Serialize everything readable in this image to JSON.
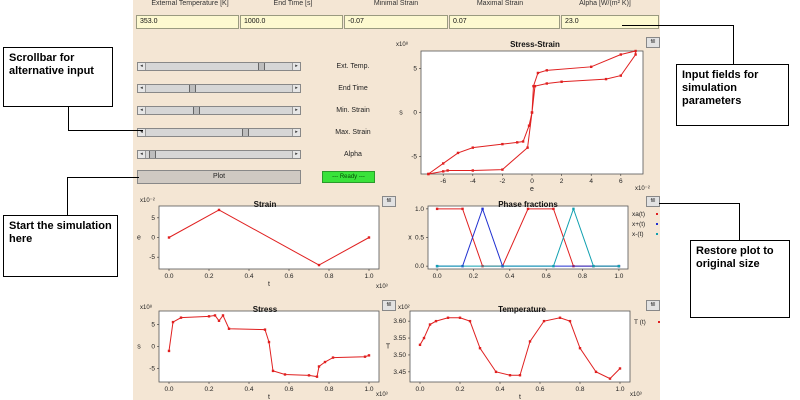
{
  "headers": [
    "External Temperature [K]",
    "End Time [s]",
    "Minimal Strain",
    "Maximal Strain",
    "Alpha [W/(m² K)]"
  ],
  "fields": [
    "353.0",
    "1000.0",
    "-0.07",
    "0.07",
    "23.0"
  ],
  "sliders": [
    {
      "label": "Ext. Temp.",
      "level": 0.78
    },
    {
      "label": "End Time",
      "level": 0.3
    },
    {
      "label": "Min. Strain",
      "level": 0.33
    },
    {
      "label": "Max. Strain",
      "level": 0.67
    },
    {
      "label": "Alpha",
      "level": 0.02
    }
  ],
  "plot_button": "Plot",
  "status": "--- Ready ---",
  "fill_label": "fill",
  "callouts": {
    "scrollbar": "Scrollbar for alternative input",
    "start": "Start the simulation here",
    "inputs": "Input fields for simulation parameters",
    "restore": "Restore plot to original size"
  },
  "chart_data": [
    {
      "type": "line",
      "title": "Stress-Strain",
      "xlabel": "e",
      "ylabel": "s",
      "x_mult": "x10⁻²",
      "y_mult": "x10⁸",
      "xlim": [
        -7.5,
        7.5
      ],
      "ylim": [
        -7,
        7
      ],
      "xticks": [
        -6,
        -4,
        -2,
        0,
        2,
        4,
        6
      ],
      "yticks": [
        -5,
        0,
        5
      ],
      "series": [
        {
          "color": "#e02020",
          "x": [
            -7,
            -6,
            -5,
            -4,
            -2,
            -1,
            -0.6,
            -0.2,
            0,
            0.2,
            1,
            2,
            5,
            6,
            7,
            7,
            6,
            4,
            1,
            0.4,
            0.1,
            0,
            -0.3,
            -2,
            -4,
            -5.7,
            -6,
            -7
          ],
          "y": [
            -7,
            -5.8,
            -4.6,
            -4,
            -3.6,
            -3.4,
            -3.3,
            -1.5,
            0,
            3,
            3.3,
            3.5,
            3.8,
            4.2,
            6.6,
            7,
            6.6,
            5.2,
            4.8,
            4.5,
            3,
            0,
            -4,
            -6.5,
            -6.6,
            -6.6,
            -6.7,
            -7
          ]
        }
      ]
    },
    {
      "type": "line",
      "title": "Strain",
      "xlabel": "t",
      "ylabel": "e",
      "x_mult": "x10³",
      "y_mult": "x10⁻²",
      "xlim": [
        -0.05,
        1.05
      ],
      "ylim": [
        -8,
        8
      ],
      "xticks": [
        0.0,
        0.2,
        0.4,
        0.6,
        0.8,
        1.0
      ],
      "yticks": [
        -5,
        0,
        5
      ],
      "series": [
        {
          "color": "#e02020",
          "x": [
            0,
            0.25,
            0.75,
            1.0
          ],
          "y": [
            0,
            7,
            -7,
            0
          ]
        }
      ]
    },
    {
      "type": "line",
      "title": "Phase fractions",
      "ylabel": "x",
      "xlim": [
        -0.05,
        1.05
      ],
      "ylim": [
        -0.05,
        1.05
      ],
      "xticks": [
        0.0,
        0.2,
        0.4,
        0.6,
        0.8,
        1.0
      ],
      "yticks": [
        0.0,
        0.5,
        1.0
      ],
      "series": [
        {
          "name": "xa(t)",
          "color": "#e02020",
          "x": [
            0,
            0.14,
            0.25,
            0.36,
            0.5,
            0.64,
            0.75,
            0.86,
            1.0
          ],
          "y": [
            1,
            1,
            0,
            0,
            1,
            1,
            0,
            0,
            0
          ]
        },
        {
          "name": "x+(t)",
          "color": "#2030d0",
          "x": [
            0,
            0.14,
            0.25,
            0.36,
            1.0
          ],
          "y": [
            0,
            0,
            1,
            0,
            0
          ]
        },
        {
          "name": "x-(t)",
          "color": "#10a0b0",
          "x": [
            0,
            0.64,
            0.75,
            0.86,
            1.0
          ],
          "y": [
            0,
            0,
            1,
            0,
            0
          ]
        }
      ]
    },
    {
      "type": "line",
      "title": "Stress",
      "xlabel": "t",
      "ylabel": "s",
      "x_mult": "x10³",
      "y_mult": "x10⁸",
      "xlim": [
        -0.05,
        1.05
      ],
      "ylim": [
        -8,
        8
      ],
      "xticks": [
        0.0,
        0.2,
        0.4,
        0.6,
        0.8,
        1.0
      ],
      "yticks": [
        -5,
        0,
        5
      ],
      "series": [
        {
          "color": "#e02020",
          "x": [
            0,
            0.02,
            0.06,
            0.2,
            0.23,
            0.25,
            0.27,
            0.3,
            0.48,
            0.5,
            0.52,
            0.58,
            0.7,
            0.74,
            0.75,
            0.78,
            0.82,
            0.98,
            1.0
          ],
          "y": [
            -1,
            5.5,
            6.5,
            6.8,
            7,
            5.8,
            7,
            4,
            3.8,
            1,
            -5.5,
            -6.3,
            -6.5,
            -6.8,
            -4.5,
            -3.5,
            -2.5,
            -2.3,
            -2
          ]
        }
      ]
    },
    {
      "type": "line",
      "title": "Temperature",
      "xlabel": "t",
      "ylabel": "T",
      "x_mult": "x10³",
      "y_mult": "x10²",
      "xlim": [
        -0.05,
        1.05
      ],
      "ylim": [
        3.42,
        3.63
      ],
      "xticks": [
        0.0,
        0.2,
        0.4,
        0.6,
        0.8,
        1.0
      ],
      "yticks": [
        3.45,
        3.5,
        3.55,
        3.6
      ],
      "series": [
        {
          "name": "T (t)",
          "color": "#e02020",
          "x": [
            0,
            0.02,
            0.05,
            0.08,
            0.14,
            0.2,
            0.25,
            0.3,
            0.38,
            0.45,
            0.5,
            0.55,
            0.62,
            0.7,
            0.75,
            0.8,
            0.88,
            0.95,
            1.0
          ],
          "y": [
            3.53,
            3.55,
            3.59,
            3.6,
            3.61,
            3.61,
            3.6,
            3.52,
            3.45,
            3.44,
            3.44,
            3.54,
            3.6,
            3.61,
            3.6,
            3.52,
            3.45,
            3.43,
            3.46
          ]
        }
      ]
    }
  ]
}
